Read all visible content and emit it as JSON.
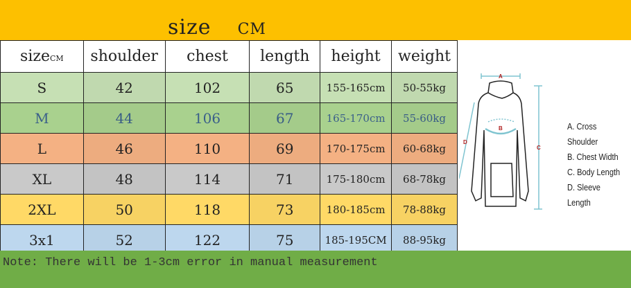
{
  "title": {
    "word": "size",
    "unit": "CM"
  },
  "headers": [
    "size",
    "shoulder",
    "chest",
    "length",
    "height",
    "weight"
  ],
  "header_unit": "CM",
  "rows": [
    {
      "size": "S",
      "shoulder": "42",
      "chest": "102",
      "length": "65",
      "height": "155-165cm",
      "weight": "50-55kg",
      "color": "#c6e0b4",
      "text": "#222222"
    },
    {
      "size": "M",
      "shoulder": "44",
      "chest": "106",
      "length": "67",
      "height": "165-170cm",
      "weight": "55-60kg",
      "color": "#a9d18e",
      "text": "#3a5f8a"
    },
    {
      "size": "L",
      "shoulder": "46",
      "chest": "110",
      "length": "69",
      "height": "170-175cm",
      "weight": "60-68kg",
      "color": "#f4b183",
      "text": "#222222"
    },
    {
      "size": "XL",
      "shoulder": "48",
      "chest": "114",
      "length": "71",
      "height": "175-180cm",
      "weight": "68-78kg",
      "color": "#c9c9c9",
      "text": "#222222"
    },
    {
      "size": "2XL",
      "shoulder": "50",
      "chest": "118",
      "length": "73",
      "height": "180-185cm",
      "weight": "78-88kg",
      "color": "#ffd966",
      "text": "#222222"
    },
    {
      "size": "3x1",
      "shoulder": "52",
      "chest": "122",
      "length": "75",
      "height": "185-195CM",
      "weight": "88-95kg",
      "color": "#bdd7ee",
      "text": "#222222"
    }
  ],
  "diagram": {
    "labels": [
      "A",
      "B",
      "C",
      "D"
    ],
    "legend": [
      "A. Cross Shoulder",
      "B. Chest Width",
      "C. Body Length",
      "D. Sleeve Length"
    ]
  },
  "note": "Note: There will be 1-3cm error in manual measurement",
  "colors": {
    "top": "#fdc000",
    "bottom": "#70ad47"
  }
}
